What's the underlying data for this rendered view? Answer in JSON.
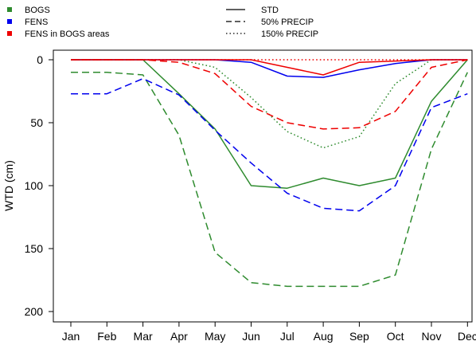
{
  "chart_data": {
    "type": "line",
    "title": "",
    "xlabel": "",
    "ylabel": "WTD (cm)",
    "categories": [
      "Jan",
      "Feb",
      "Mar",
      "Apr",
      "May",
      "Jun",
      "Jul",
      "Aug",
      "Sep",
      "Oct",
      "Nov",
      "Dec"
    ],
    "ylim": [
      0,
      200
    ],
    "y_inverted": true,
    "y_ticks": [
      0,
      50,
      100,
      150,
      200
    ],
    "grid": false,
    "legend_placement": "top",
    "legend_colors": [
      {
        "label": "BOGS",
        "color": "#2e8b2e"
      },
      {
        "label": "FENS",
        "color": "#0000ee"
      },
      {
        "label": "FENS in BOGS areas",
        "color": "#ee0000"
      }
    ],
    "legend_styles": [
      {
        "label": "STD",
        "dash": "solid"
      },
      {
        "label": "50% PRECIP",
        "dash": "dashed"
      },
      {
        "label": "150% PRECIP",
        "dash": "dotted"
      }
    ],
    "series": [
      {
        "group": "BOGS",
        "scenario": "STD",
        "color": "#2e8b2e",
        "dash": "solid",
        "values": [
          0,
          0,
          0,
          27,
          55,
          100,
          102,
          94,
          100,
          94,
          33,
          0
        ]
      },
      {
        "group": "BOGS",
        "scenario": "50% PRECIP",
        "color": "#2e8b2e",
        "dash": "dashed",
        "values": [
          10,
          10,
          12,
          60,
          153,
          177,
          180,
          180,
          180,
          171,
          71,
          10
        ]
      },
      {
        "group": "BOGS",
        "scenario": "150% PRECIP",
        "color": "#2e8b2e",
        "dash": "dotted",
        "values": [
          0,
          0,
          0,
          0,
          6,
          30,
          57,
          70,
          61,
          19,
          0,
          0
        ]
      },
      {
        "group": "FENS",
        "scenario": "STD",
        "color": "#0000ee",
        "dash": "solid",
        "values": [
          0,
          0,
          0,
          0,
          0,
          2,
          13,
          14,
          8,
          3,
          0,
          0
        ]
      },
      {
        "group": "FENS",
        "scenario": "50% PRECIP",
        "color": "#0000ee",
        "dash": "dashed",
        "values": [
          27,
          27,
          15,
          28,
          56,
          82,
          106,
          118,
          120,
          100,
          38,
          27
        ]
      },
      {
        "group": "FENS in BOGS areas",
        "scenario": "STD",
        "color": "#ee0000",
        "dash": "solid",
        "values": [
          0,
          0,
          0,
          0,
          0,
          0,
          6,
          12,
          2,
          1,
          0,
          0
        ]
      },
      {
        "group": "FENS in BOGS areas",
        "scenario": "50% PRECIP",
        "color": "#ee0000",
        "dash": "dashed",
        "values": [
          0,
          0,
          0,
          2,
          11,
          37,
          50,
          55,
          54,
          41,
          6,
          0
        ]
      },
      {
        "group": "FENS in BOGS areas",
        "scenario": "150% PRECIP",
        "color": "#ee0000",
        "dash": "dotted",
        "values": [
          0,
          0,
          0,
          0,
          0,
          0,
          0,
          0,
          0,
          0,
          0,
          0
        ]
      }
    ]
  }
}
